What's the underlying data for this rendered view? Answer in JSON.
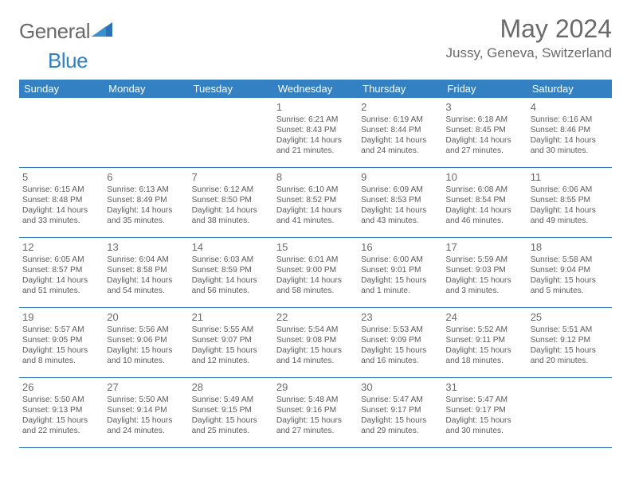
{
  "brand": {
    "name1": "General",
    "name2": "Blue"
  },
  "title": {
    "month": "May 2024",
    "location": "Jussy, Geneva, Switzerland"
  },
  "colors": {
    "header_bg": "#3380c2",
    "header_fg": "#ffffff",
    "text": "#5a5a5a",
    "rule": "#3380c2",
    "page_bg": "#ffffff"
  },
  "dayHeaders": [
    "Sunday",
    "Monday",
    "Tuesday",
    "Wednesday",
    "Thursday",
    "Friday",
    "Saturday"
  ],
  "layout": {
    "cols": 7,
    "rows": 5,
    "cell_fontsize": 10.2,
    "daynum_fontsize": 13,
    "header_fontsize": 13,
    "title_fontsize": 32,
    "location_fontsize": 17
  },
  "weeks": [
    [
      null,
      null,
      null,
      {
        "n": "1",
        "sr": "6:21 AM",
        "ss": "8:43 PM",
        "dl": "14 hours and 21 minutes."
      },
      {
        "n": "2",
        "sr": "6:19 AM",
        "ss": "8:44 PM",
        "dl": "14 hours and 24 minutes."
      },
      {
        "n": "3",
        "sr": "6:18 AM",
        "ss": "8:45 PM",
        "dl": "14 hours and 27 minutes."
      },
      {
        "n": "4",
        "sr": "6:16 AM",
        "ss": "8:46 PM",
        "dl": "14 hours and 30 minutes."
      }
    ],
    [
      {
        "n": "5",
        "sr": "6:15 AM",
        "ss": "8:48 PM",
        "dl": "14 hours and 33 minutes."
      },
      {
        "n": "6",
        "sr": "6:13 AM",
        "ss": "8:49 PM",
        "dl": "14 hours and 35 minutes."
      },
      {
        "n": "7",
        "sr": "6:12 AM",
        "ss": "8:50 PM",
        "dl": "14 hours and 38 minutes."
      },
      {
        "n": "8",
        "sr": "6:10 AM",
        "ss": "8:52 PM",
        "dl": "14 hours and 41 minutes."
      },
      {
        "n": "9",
        "sr": "6:09 AM",
        "ss": "8:53 PM",
        "dl": "14 hours and 43 minutes."
      },
      {
        "n": "10",
        "sr": "6:08 AM",
        "ss": "8:54 PM",
        "dl": "14 hours and 46 minutes."
      },
      {
        "n": "11",
        "sr": "6:06 AM",
        "ss": "8:55 PM",
        "dl": "14 hours and 49 minutes."
      }
    ],
    [
      {
        "n": "12",
        "sr": "6:05 AM",
        "ss": "8:57 PM",
        "dl": "14 hours and 51 minutes."
      },
      {
        "n": "13",
        "sr": "6:04 AM",
        "ss": "8:58 PM",
        "dl": "14 hours and 54 minutes."
      },
      {
        "n": "14",
        "sr": "6:03 AM",
        "ss": "8:59 PM",
        "dl": "14 hours and 56 minutes."
      },
      {
        "n": "15",
        "sr": "6:01 AM",
        "ss": "9:00 PM",
        "dl": "14 hours and 58 minutes."
      },
      {
        "n": "16",
        "sr": "6:00 AM",
        "ss": "9:01 PM",
        "dl": "15 hours and 1 minute."
      },
      {
        "n": "17",
        "sr": "5:59 AM",
        "ss": "9:03 PM",
        "dl": "15 hours and 3 minutes."
      },
      {
        "n": "18",
        "sr": "5:58 AM",
        "ss": "9:04 PM",
        "dl": "15 hours and 5 minutes."
      }
    ],
    [
      {
        "n": "19",
        "sr": "5:57 AM",
        "ss": "9:05 PM",
        "dl": "15 hours and 8 minutes."
      },
      {
        "n": "20",
        "sr": "5:56 AM",
        "ss": "9:06 PM",
        "dl": "15 hours and 10 minutes."
      },
      {
        "n": "21",
        "sr": "5:55 AM",
        "ss": "9:07 PM",
        "dl": "15 hours and 12 minutes."
      },
      {
        "n": "22",
        "sr": "5:54 AM",
        "ss": "9:08 PM",
        "dl": "15 hours and 14 minutes."
      },
      {
        "n": "23",
        "sr": "5:53 AM",
        "ss": "9:09 PM",
        "dl": "15 hours and 16 minutes."
      },
      {
        "n": "24",
        "sr": "5:52 AM",
        "ss": "9:11 PM",
        "dl": "15 hours and 18 minutes."
      },
      {
        "n": "25",
        "sr": "5:51 AM",
        "ss": "9:12 PM",
        "dl": "15 hours and 20 minutes."
      }
    ],
    [
      {
        "n": "26",
        "sr": "5:50 AM",
        "ss": "9:13 PM",
        "dl": "15 hours and 22 minutes."
      },
      {
        "n": "27",
        "sr": "5:50 AM",
        "ss": "9:14 PM",
        "dl": "15 hours and 24 minutes."
      },
      {
        "n": "28",
        "sr": "5:49 AM",
        "ss": "9:15 PM",
        "dl": "15 hours and 25 minutes."
      },
      {
        "n": "29",
        "sr": "5:48 AM",
        "ss": "9:16 PM",
        "dl": "15 hours and 27 minutes."
      },
      {
        "n": "30",
        "sr": "5:47 AM",
        "ss": "9:17 PM",
        "dl": "15 hours and 29 minutes."
      },
      {
        "n": "31",
        "sr": "5:47 AM",
        "ss": "9:17 PM",
        "dl": "15 hours and 30 minutes."
      },
      null
    ]
  ],
  "labels": {
    "sunrise": "Sunrise:",
    "sunset": "Sunset:",
    "daylight": "Daylight:"
  }
}
